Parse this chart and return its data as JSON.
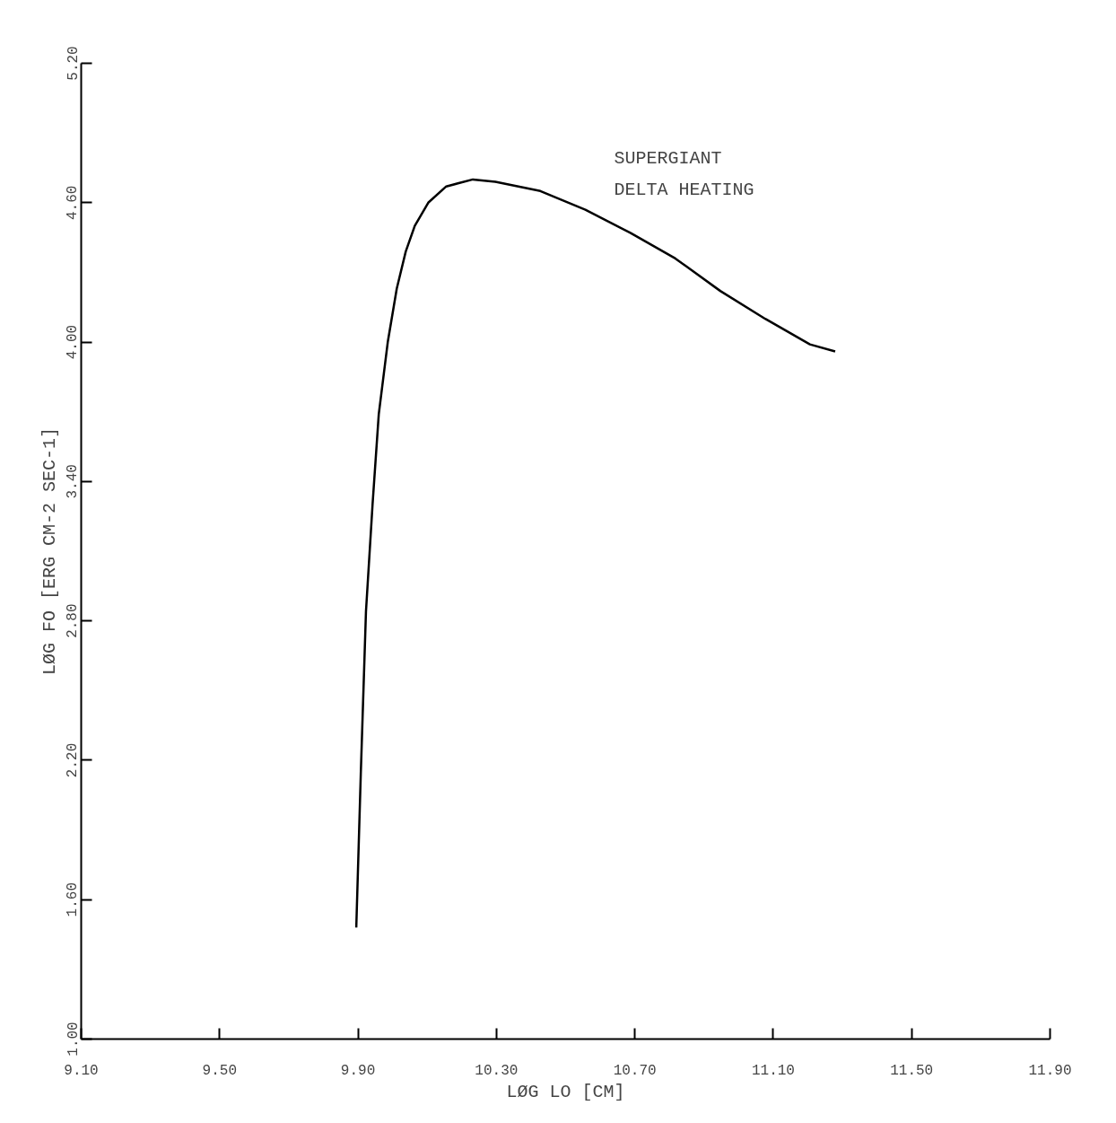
{
  "chart_data": {
    "type": "line",
    "xlabel": "LØG LO [CM]",
    "ylabel": "LØG FO [ERG CM-2 SEC-1]",
    "annotations": [
      "SUPERGIANT\nDELTA HEATING"
    ],
    "xlim": [
      9.1,
      11.9
    ],
    "xticks": [
      {
        "value": 9.1,
        "label": "9.10"
      },
      {
        "value": 9.5,
        "label": "9.50"
      },
      {
        "value": 9.9,
        "label": "9.90"
      },
      {
        "value": 10.3,
        "label": "10.30"
      },
      {
        "value": 10.7,
        "label": "10.70"
      },
      {
        "value": 11.1,
        "label": "11.10"
      },
      {
        "value": 11.5,
        "label": "11.50"
      },
      {
        "value": 11.9,
        "label": "11.90"
      }
    ],
    "ylim": [
      1.0,
      5.2
    ],
    "yticks": [
      {
        "value": 1.0,
        "label": "1.00"
      },
      {
        "value": 1.6,
        "label": "1.60"
      },
      {
        "value": 2.2,
        "label": "2.20"
      },
      {
        "value": 2.8,
        "label": "2.80"
      },
      {
        "value": 3.4,
        "label": "3.40"
      },
      {
        "value": 4.0,
        "label": "4.00"
      },
      {
        "value": 4.6,
        "label": "4.60"
      },
      {
        "value": 5.2,
        "label": "5.20"
      }
    ],
    "grid": false,
    "series": [
      {
        "color": "#000000",
        "x": [
          9.895,
          9.908,
          9.923,
          9.942,
          9.96,
          9.986,
          10.012,
          10.038,
          10.064,
          10.103,
          10.155,
          10.232,
          10.297,
          10.427,
          10.557,
          10.687,
          10.817,
          10.947,
          11.077,
          11.206,
          11.279
        ],
        "values": [
          1.48,
          2.14,
          2.84,
          3.3,
          3.69,
          4.0,
          4.23,
          4.39,
          4.5,
          4.6,
          4.67,
          4.7,
          4.69,
          4.65,
          4.57,
          4.47,
          4.36,
          4.22,
          4.1,
          3.99,
          3.96
        ]
      }
    ]
  }
}
